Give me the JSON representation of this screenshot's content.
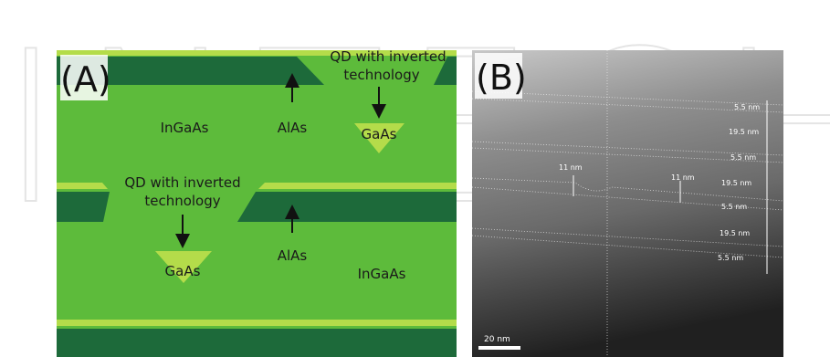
{
  "watermark": "INTECH",
  "panel_a": {
    "label": "(A)",
    "qd_top": [
      "QD with inverted",
      "technology"
    ],
    "qd_mid": [
      "QD with inverted",
      "technology"
    ],
    "alas_top": "AlAs",
    "alas_mid": "AlAs",
    "ingaas_top": "InGaAs",
    "ingaas_bottom": "InGaAs",
    "gaas_top": "GaAs",
    "gaas_bottom": "GaAs"
  },
  "panel_b": {
    "label": "(B)",
    "measurements": [
      "5.5 nm",
      "19.5 nm",
      "5.5 nm",
      "11 nm",
      "11 nm",
      "19.5 nm",
      "5.5 nm",
      "19.5 nm",
      "5.5 nm"
    ],
    "scale_bar": "20 nm"
  }
}
